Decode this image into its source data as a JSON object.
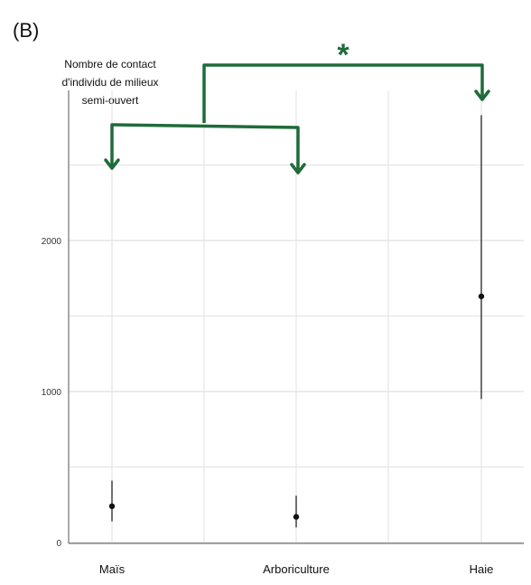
{
  "panel_label": "(B)",
  "chart_data": {
    "type": "scatter",
    "subtype": "point-with-error-bars",
    "ylabel_lines": [
      "Nombre de contact",
      "d'individu de milieux",
      "semi-ouvert"
    ],
    "categories": [
      "Maïs",
      "Arboriculture",
      "Haie"
    ],
    "series": [
      {
        "estimate": [
          240,
          170,
          1630
        ],
        "lower": [
          140,
          100,
          950
        ],
        "upper": [
          410,
          310,
          2830
        ]
      }
    ],
    "yticks": [
      0,
      1000,
      2000
    ],
    "ylim": [
      -30,
      3000
    ],
    "grid": true,
    "annotation": {
      "text": "*",
      "comparison": "Haie vs (Maïs, Arboriculture)",
      "color": "#1f6b3a"
    }
  }
}
